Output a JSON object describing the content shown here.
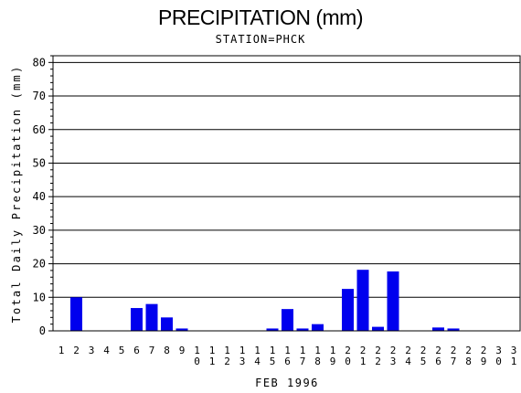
{
  "chart_data": {
    "type": "bar",
    "title": "PRECIPITATION (mm)",
    "subtitle": "STATION=PHCK",
    "xlabel": "FEB 1996",
    "ylabel": "Total Daily Precipitation (mm)",
    "ylim": [
      0,
      82
    ],
    "yticks": [
      0,
      10,
      20,
      30,
      40,
      50,
      60,
      70,
      80
    ],
    "grid": true,
    "bar_color": "#0000ee",
    "categories": [
      "1",
      "2",
      "3",
      "4",
      "5",
      "6",
      "7",
      "8",
      "9",
      "10",
      "11",
      "12",
      "13",
      "14",
      "15",
      "16",
      "17",
      "18",
      "19",
      "20",
      "21",
      "22",
      "23",
      "24",
      "25",
      "26",
      "27",
      "28",
      "29",
      "30",
      "31"
    ],
    "values": [
      0,
      10,
      0,
      0,
      0,
      6.8,
      8,
      4,
      0.7,
      0,
      0,
      0,
      0,
      0,
      0.7,
      6.5,
      0.7,
      2,
      0,
      12.5,
      18.2,
      1.2,
      17.7,
      0,
      0,
      1,
      0.7,
      0,
      0,
      0,
      0
    ]
  }
}
